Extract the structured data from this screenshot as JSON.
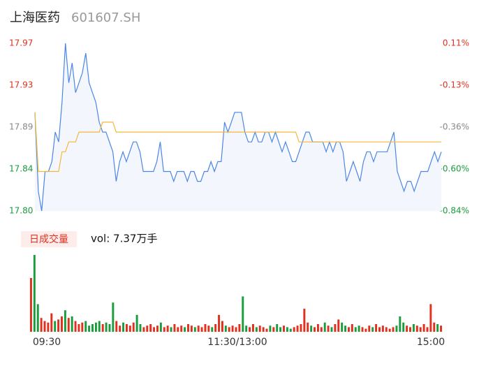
{
  "header": {
    "name": "上海医药",
    "code": "601607.SH"
  },
  "chart_data": {
    "type": "intraday",
    "xlim": [
      0,
      120
    ],
    "xticks": [
      {
        "value": 0,
        "label": "09:30"
      },
      {
        "value": 60,
        "label": "11:30/13:00"
      },
      {
        "value": 120,
        "label": "15:00"
      }
    ],
    "ylim": [
      17.8,
      17.97
    ],
    "yticks": [
      {
        "value": 17.8,
        "label": "17.80"
      },
      {
        "value": 17.8425,
        "label": "17.84"
      },
      {
        "value": 17.885,
        "label": "17.89"
      },
      {
        "value": 17.9275,
        "label": "17.93"
      },
      {
        "value": 17.97,
        "label": "17.97"
      }
    ],
    "ytick_colors": [
      "#1a9c3c",
      "#1a9c3c",
      "#888888",
      "#e0301e",
      "#e0301e"
    ],
    "y2lim": [
      -0.84,
      0.11
    ],
    "y2ticks": [
      {
        "value": -0.84,
        "label": "-0.84%"
      },
      {
        "value": -0.6025,
        "label": "-0.60%"
      },
      {
        "value": -0.365,
        "label": "-0.36%"
      },
      {
        "value": -0.1275,
        "label": "-0.13%"
      },
      {
        "value": 0.11,
        "label": "0.11%"
      }
    ],
    "series": [
      {
        "name": "price",
        "color": "#4a86e8",
        "values": [
          17.9,
          17.82,
          17.8,
          17.84,
          17.84,
          17.85,
          17.88,
          17.87,
          17.91,
          17.97,
          17.93,
          17.95,
          17.92,
          17.93,
          17.94,
          17.96,
          17.93,
          17.92,
          17.91,
          17.89,
          17.88,
          17.88,
          17.87,
          17.86,
          17.83,
          17.85,
          17.86,
          17.85,
          17.86,
          17.87,
          17.87,
          17.86,
          17.84,
          17.84,
          17.84,
          17.84,
          17.85,
          17.87,
          17.84,
          17.84,
          17.84,
          17.83,
          17.84,
          17.84,
          17.84,
          17.83,
          17.84,
          17.84,
          17.83,
          17.83,
          17.84,
          17.84,
          17.85,
          17.84,
          17.85,
          17.85,
          17.89,
          17.88,
          17.89,
          17.9,
          17.9,
          17.9,
          17.88,
          17.87,
          17.87,
          17.88,
          17.87,
          17.87,
          17.88,
          17.88,
          17.87,
          17.88,
          17.87,
          17.86,
          17.87,
          17.86,
          17.85,
          17.85,
          17.86,
          17.87,
          17.88,
          17.88,
          17.87,
          17.87,
          17.87,
          17.87,
          17.86,
          17.87,
          17.86,
          17.87,
          17.87,
          17.86,
          17.83,
          17.84,
          17.85,
          17.84,
          17.83,
          17.85,
          17.86,
          17.86,
          17.85,
          17.86,
          17.86,
          17.86,
          17.86,
          17.87,
          17.88,
          17.84,
          17.83,
          17.82,
          17.83,
          17.83,
          17.82,
          17.83,
          17.84,
          17.84,
          17.84,
          17.85,
          17.86,
          17.85,
          17.86
        ]
      },
      {
        "name": "average",
        "color": "#f5b73b",
        "values": [
          17.9,
          17.84,
          17.84,
          17.84,
          17.84,
          17.84,
          17.84,
          17.84,
          17.86,
          17.86,
          17.87,
          17.87,
          17.87,
          17.88,
          17.88,
          17.88,
          17.88,
          17.88,
          17.88,
          17.88,
          17.89,
          17.89,
          17.89,
          17.89,
          17.88,
          17.88,
          17.88,
          17.88,
          17.88,
          17.88,
          17.88,
          17.88,
          17.88,
          17.88,
          17.88,
          17.88,
          17.88,
          17.88,
          17.88,
          17.88,
          17.88,
          17.88,
          17.88,
          17.88,
          17.88,
          17.88,
          17.88,
          17.88,
          17.88,
          17.88,
          17.88,
          17.88,
          17.88,
          17.88,
          17.88,
          17.88,
          17.88,
          17.88,
          17.88,
          17.88,
          17.88,
          17.88,
          17.88,
          17.88,
          17.88,
          17.88,
          17.88,
          17.88,
          17.88,
          17.88,
          17.88,
          17.88,
          17.88,
          17.88,
          17.88,
          17.88,
          17.88,
          17.88,
          17.87,
          17.87,
          17.87,
          17.87,
          17.87,
          17.87,
          17.87,
          17.87,
          17.87,
          17.87,
          17.87,
          17.87,
          17.87,
          17.87,
          17.87,
          17.87,
          17.87,
          17.87,
          17.87,
          17.87,
          17.87,
          17.87,
          17.87,
          17.87,
          17.87,
          17.87,
          17.87,
          17.87,
          17.87,
          17.87,
          17.87,
          17.87,
          17.87,
          17.87,
          17.87,
          17.87,
          17.87,
          17.87,
          17.87,
          17.87,
          17.87,
          17.87,
          17.87
        ]
      }
    ],
    "volume_label": "日成交量",
    "volume_total": "vol: 7.37万手",
    "volume_ylim": [
      0,
      5000
    ],
    "up_color": "#e0301e",
    "down_color": "#1a9c3c",
    "volume": [
      3500,
      5000,
      1800,
      900,
      700,
      600,
      1200,
      700,
      800,
      1000,
      1400,
      900,
      1000,
      700,
      500,
      600,
      700,
      400,
      500,
      600,
      700,
      500,
      600,
      500,
      1900,
      700,
      400,
      600,
      500,
      400,
      600,
      1100,
      500,
      300,
      400,
      500,
      300,
      400,
      600,
      300,
      400,
      300,
      500,
      300,
      400,
      300,
      500,
      400,
      300,
      400,
      300,
      500,
      400,
      300,
      500,
      1100,
      700,
      400,
      300,
      400,
      300,
      500,
      2300,
      400,
      300,
      500,
      300,
      400,
      300,
      200,
      400,
      300,
      500,
      300,
      400,
      300,
      200,
      300,
      400,
      500,
      1500,
      600,
      400,
      300,
      500,
      300,
      600,
      400,
      300,
      500,
      800,
      600,
      400,
      300,
      500,
      300,
      400,
      300,
      200,
      400,
      300,
      500,
      300,
      400,
      300,
      200,
      300,
      400,
      1000,
      600,
      400,
      300,
      500,
      400,
      300,
      500,
      300,
      1800,
      600,
      500,
      400
    ]
  }
}
